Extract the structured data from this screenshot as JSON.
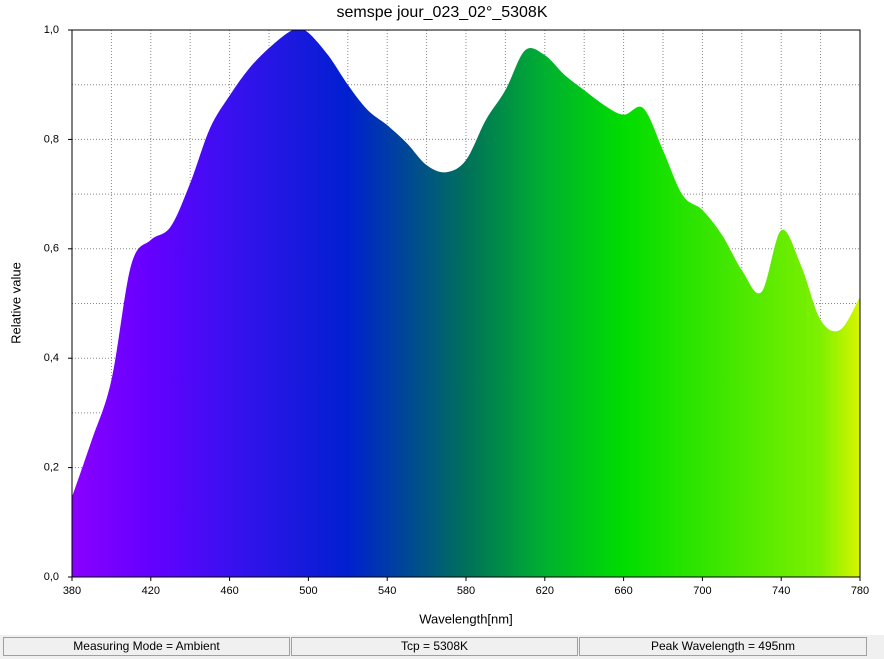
{
  "chart_data": {
    "type": "area",
    "title": "semspe jour_023_02°_5308K",
    "xlabel": "Wavelength[nm]",
    "ylabel": "Relative value",
    "x": [
      380,
      390,
      400,
      410,
      420,
      430,
      440,
      450,
      460,
      470,
      480,
      490,
      495,
      500,
      510,
      520,
      530,
      540,
      550,
      560,
      570,
      580,
      590,
      600,
      610,
      620,
      630,
      640,
      650,
      660,
      670,
      680,
      690,
      700,
      710,
      720,
      730,
      740,
      750,
      760,
      770,
      780
    ],
    "values": [
      0.146,
      0.25,
      0.36,
      0.57,
      0.616,
      0.64,
      0.72,
      0.82,
      0.88,
      0.93,
      0.967,
      0.996,
      1.0,
      0.995,
      0.954,
      0.9,
      0.854,
      0.826,
      0.793,
      0.753,
      0.74,
      0.762,
      0.835,
      0.89,
      0.963,
      0.954,
      0.918,
      0.89,
      0.863,
      0.845,
      0.857,
      0.78,
      0.698,
      0.671,
      0.625,
      0.561,
      0.521,
      0.634,
      0.57,
      0.47,
      0.452,
      0.512
    ],
    "xlim": [
      380,
      780
    ],
    "xticks": [
      380,
      420,
      460,
      500,
      540,
      580,
      620,
      660,
      700,
      740,
      780
    ],
    "xminor_ticks": [
      400,
      440,
      480,
      520,
      560,
      600,
      640,
      680,
      720,
      760
    ],
    "ylim": [
      0,
      1
    ],
    "yticks": [
      {
        "value": 0,
        "label": "0,0"
      },
      {
        "value": 0.2,
        "label": "0,2"
      },
      {
        "value": 0.4,
        "label": "0,4"
      },
      {
        "value": 0.6,
        "label": "0,6"
      },
      {
        "value": 0.8,
        "label": "0,8"
      },
      {
        "value": 1,
        "label": "1,0"
      }
    ],
    "yminor_ticks": [
      0.1,
      0.3,
      0.5,
      0.7,
      0.9
    ],
    "grid": true
  },
  "status_bar": [
    "Measuring Mode = Ambient",
    "Tcp = 5308K",
    "Peak Wavelength = 495nm"
  ]
}
